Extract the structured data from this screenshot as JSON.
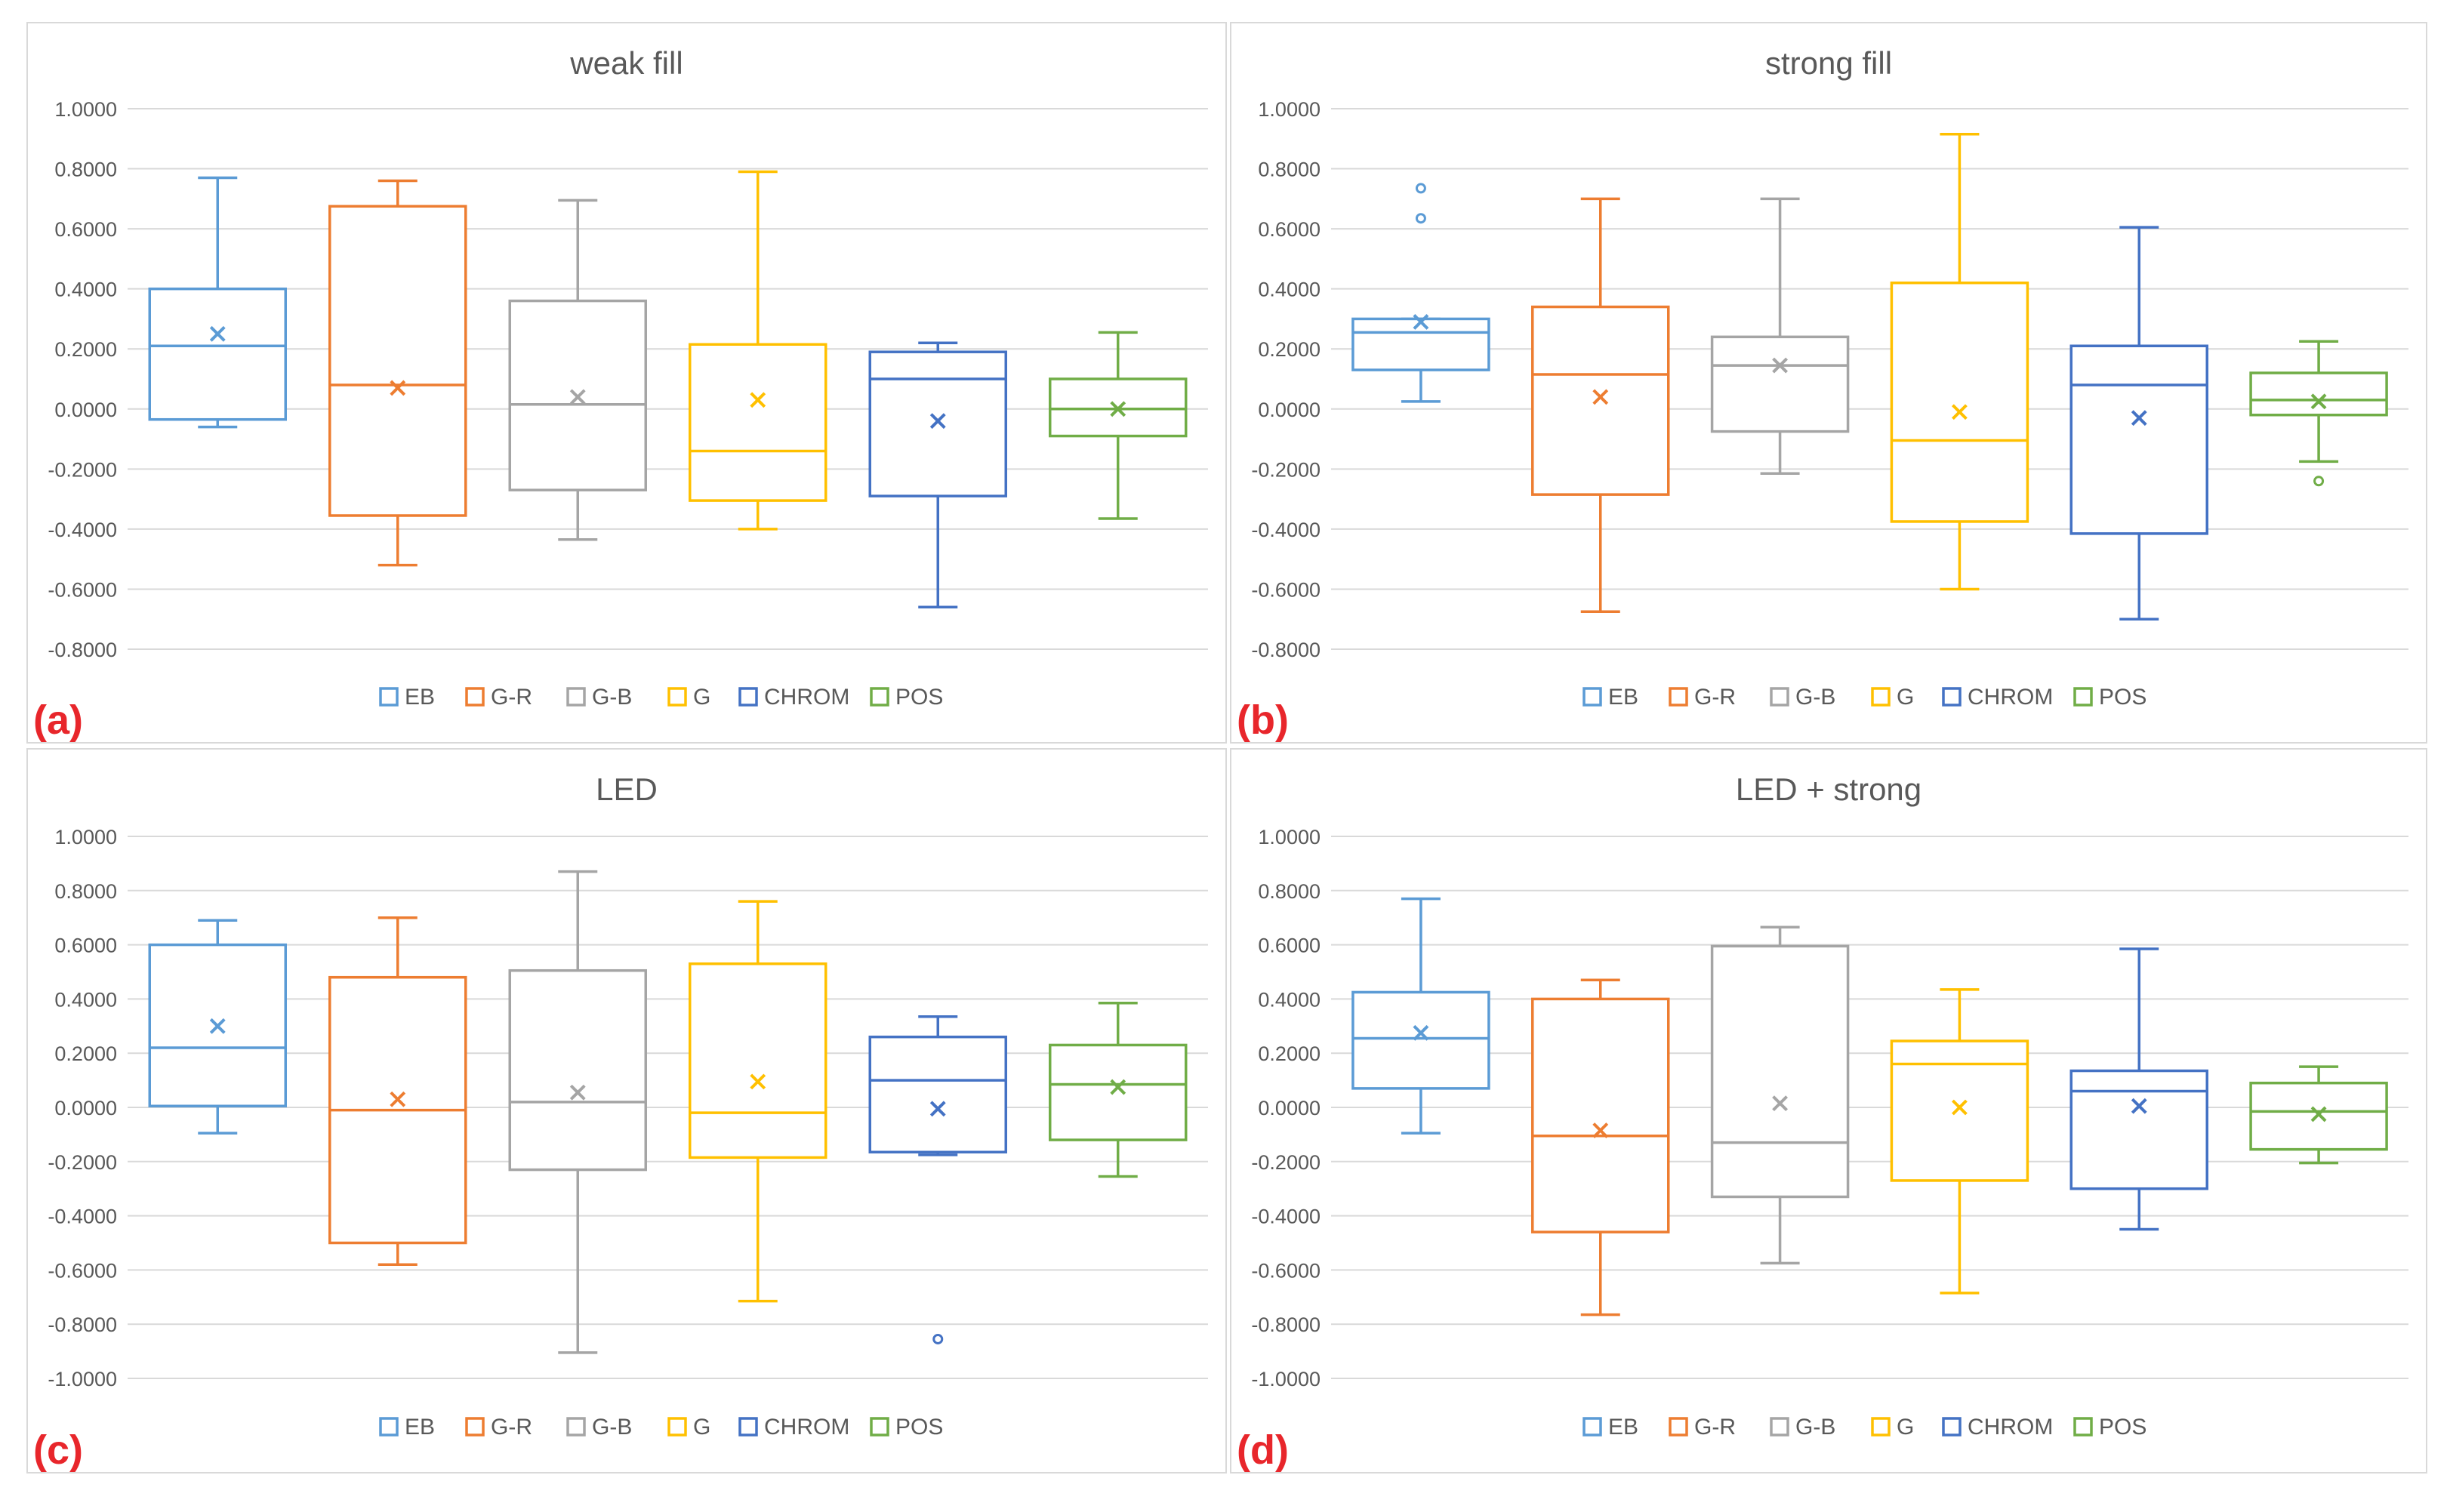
{
  "figure": {
    "panel_labels": [
      "(a)",
      "(b)",
      "(c)",
      "(d)"
    ],
    "label_color": "#E8262B"
  },
  "series_styles": [
    {
      "name": "EB",
      "color": "#5B9BD5"
    },
    {
      "name": "G-R",
      "color": "#ED7D31"
    },
    {
      "name": "G-B",
      "color": "#A5A5A5"
    },
    {
      "name": "G",
      "color": "#FFC000"
    },
    {
      "name": "CHROM",
      "color": "#4472C4"
    },
    {
      "name": "POS",
      "color": "#70AD47"
    }
  ],
  "chart_data": [
    {
      "type": "boxplot",
      "title": "weak fill",
      "panel_label": "(a)",
      "ylim": [
        -0.8,
        1.0
      ],
      "yticks": [
        1.0,
        0.8,
        0.6,
        0.4,
        0.2,
        0.0,
        -0.2,
        -0.4,
        -0.6,
        -0.8
      ],
      "ytick_labels": [
        "1.0000",
        "0.8000",
        "0.6000",
        "0.4000",
        "0.2000",
        "0.0000",
        "-0.2000",
        "-0.4000",
        "-0.6000",
        "-0.8000"
      ],
      "legend": [
        "EB",
        "G-R",
        "G-B",
        "G",
        "CHROM",
        "POS"
      ],
      "legend_position": "bottom",
      "grid": true,
      "series": [
        {
          "name": "EB",
          "min": -0.06,
          "q1": -0.035,
          "median": 0.21,
          "q3": 0.4,
          "max": 0.77,
          "mean": 0.25,
          "outliers": []
        },
        {
          "name": "G-R",
          "min": -0.52,
          "q1": -0.355,
          "median": 0.08,
          "q3": 0.675,
          "max": 0.76,
          "mean": 0.07,
          "outliers": []
        },
        {
          "name": "G-B",
          "min": -0.435,
          "q1": -0.27,
          "median": 0.015,
          "q3": 0.36,
          "max": 0.695,
          "mean": 0.04,
          "outliers": []
        },
        {
          "name": "G",
          "min": -0.4,
          "q1": -0.305,
          "median": -0.14,
          "q3": 0.215,
          "max": 0.79,
          "mean": 0.03,
          "outliers": []
        },
        {
          "name": "CHROM",
          "min": -0.66,
          "q1": -0.29,
          "median": 0.1,
          "q3": 0.19,
          "max": 0.22,
          "mean": -0.04,
          "outliers": []
        },
        {
          "name": "POS",
          "min": -0.365,
          "q1": -0.09,
          "median": 0.0,
          "q3": 0.1,
          "max": 0.255,
          "mean": 0.0,
          "outliers": []
        }
      ]
    },
    {
      "type": "boxplot",
      "title": "strong fill",
      "panel_label": "(b)",
      "ylim": [
        -0.8,
        1.0
      ],
      "yticks": [
        1.0,
        0.8,
        0.6,
        0.4,
        0.2,
        0.0,
        -0.2,
        -0.4,
        -0.6,
        -0.8
      ],
      "ytick_labels": [
        "1.0000",
        "0.8000",
        "0.6000",
        "0.4000",
        "0.2000",
        "0.0000",
        "-0.2000",
        "-0.4000",
        "-0.6000",
        "-0.8000"
      ],
      "legend": [
        "EB",
        "G-R",
        "G-B",
        "G",
        "CHROM",
        "POS"
      ],
      "legend_position": "bottom",
      "grid": true,
      "series": [
        {
          "name": "EB",
          "min": 0.025,
          "q1": 0.13,
          "median": 0.255,
          "q3": 0.3,
          "max": 0.3,
          "mean": 0.29,
          "outliers": [
            0.735,
            0.635
          ]
        },
        {
          "name": "G-R",
          "min": -0.675,
          "q1": -0.285,
          "median": 0.115,
          "q3": 0.34,
          "max": 0.7,
          "mean": 0.04,
          "outliers": []
        },
        {
          "name": "G-B",
          "min": -0.215,
          "q1": -0.075,
          "median": 0.145,
          "q3": 0.24,
          "max": 0.7,
          "mean": 0.145,
          "outliers": []
        },
        {
          "name": "G",
          "min": -0.6,
          "q1": -0.375,
          "median": -0.105,
          "q3": 0.42,
          "max": 0.915,
          "mean": -0.01,
          "outliers": []
        },
        {
          "name": "CHROM",
          "min": -0.7,
          "q1": -0.415,
          "median": 0.08,
          "q3": 0.21,
          "max": 0.605,
          "mean": -0.03,
          "outliers": []
        },
        {
          "name": "POS",
          "min": -0.175,
          "q1": -0.02,
          "median": 0.03,
          "q3": 0.12,
          "max": 0.225,
          "mean": 0.025,
          "outliers": [
            -0.24
          ]
        }
      ]
    },
    {
      "type": "boxplot",
      "title": "LED",
      "panel_label": "(c)",
      "ylim": [
        -1.0,
        1.0
      ],
      "yticks": [
        1.0,
        0.8,
        0.6,
        0.4,
        0.2,
        0.0,
        -0.2,
        -0.4,
        -0.6,
        -0.8,
        -1.0
      ],
      "ytick_labels": [
        "1.0000",
        "0.8000",
        "0.6000",
        "0.4000",
        "0.2000",
        "0.0000",
        "-0.2000",
        "-0.4000",
        "-0.6000",
        "-0.8000",
        "-1.0000"
      ],
      "legend": [
        "EB",
        "G-R",
        "G-B",
        "G",
        "CHROM",
        "POS"
      ],
      "legend_position": "bottom",
      "grid": true,
      "series": [
        {
          "name": "EB",
          "min": -0.095,
          "q1": 0.005,
          "median": 0.22,
          "q3": 0.6,
          "max": 0.69,
          "mean": 0.3,
          "outliers": []
        },
        {
          "name": "G-R",
          "min": -0.58,
          "q1": -0.5,
          "median": -0.01,
          "q3": 0.48,
          "max": 0.7,
          "mean": 0.03,
          "outliers": []
        },
        {
          "name": "G-B",
          "min": -0.905,
          "q1": -0.23,
          "median": 0.02,
          "q3": 0.505,
          "max": 0.87,
          "mean": 0.055,
          "outliers": []
        },
        {
          "name": "G",
          "min": -0.715,
          "q1": -0.185,
          "median": -0.02,
          "q3": 0.53,
          "max": 0.76,
          "mean": 0.095,
          "outliers": []
        },
        {
          "name": "CHROM",
          "min": -0.175,
          "q1": -0.165,
          "median": 0.1,
          "q3": 0.26,
          "max": 0.335,
          "mean": -0.005,
          "outliers": [
            -0.855
          ]
        },
        {
          "name": "POS",
          "min": -0.255,
          "q1": -0.12,
          "median": 0.085,
          "q3": 0.23,
          "max": 0.385,
          "mean": 0.075,
          "outliers": []
        }
      ]
    },
    {
      "type": "boxplot",
      "title": "LED + strong",
      "panel_label": "(d)",
      "ylim": [
        -1.0,
        1.0
      ],
      "yticks": [
        1.0,
        0.8,
        0.6,
        0.4,
        0.2,
        0.0,
        -0.2,
        -0.4,
        -0.6,
        -0.8,
        -1.0
      ],
      "ytick_labels": [
        "1.0000",
        "0.8000",
        "0.6000",
        "0.4000",
        "0.2000",
        "0.0000",
        "-0.2000",
        "-0.4000",
        "-0.6000",
        "-0.8000",
        "-1.0000"
      ],
      "legend": [
        "EB",
        "G-R",
        "G-B",
        "G",
        "CHROM",
        "POS"
      ],
      "legend_position": "bottom",
      "grid": true,
      "series": [
        {
          "name": "EB",
          "min": -0.095,
          "q1": 0.07,
          "median": 0.255,
          "q3": 0.425,
          "max": 0.77,
          "mean": 0.275,
          "outliers": []
        },
        {
          "name": "G-R",
          "min": -0.765,
          "q1": -0.46,
          "median": -0.105,
          "q3": 0.4,
          "max": 0.47,
          "mean": -0.085,
          "outliers": []
        },
        {
          "name": "G-B",
          "min": -0.575,
          "q1": -0.33,
          "median": -0.13,
          "q3": 0.595,
          "max": 0.665,
          "mean": 0.015,
          "outliers": []
        },
        {
          "name": "G",
          "min": -0.685,
          "q1": -0.27,
          "median": 0.16,
          "q3": 0.245,
          "max": 0.435,
          "mean": 0.0,
          "outliers": []
        },
        {
          "name": "CHROM",
          "min": -0.45,
          "q1": -0.3,
          "median": 0.06,
          "q3": 0.135,
          "max": 0.585,
          "mean": 0.005,
          "outliers": []
        },
        {
          "name": "POS",
          "min": -0.205,
          "q1": -0.155,
          "median": -0.015,
          "q3": 0.09,
          "max": 0.15,
          "mean": -0.025,
          "outliers": []
        }
      ]
    }
  ]
}
